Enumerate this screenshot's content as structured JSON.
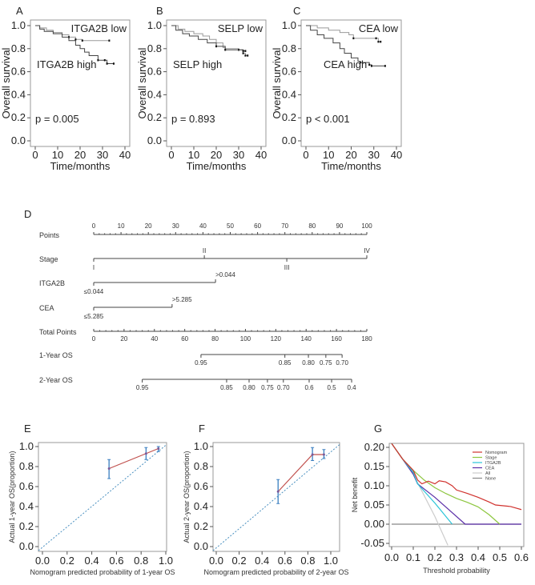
{
  "chart_data": [
    {
      "panel": "A",
      "type": "line",
      "subtype": "kaplan-meier",
      "xlabel": "Time/months",
      "ylabel": "Overall survival",
      "xlim": [
        0,
        40
      ],
      "ylim": [
        0,
        1
      ],
      "xticks": [
        "0",
        "10",
        "20",
        "30",
        "40"
      ],
      "yticks": [
        "0.0",
        "0.2",
        "0.4",
        "0.6",
        "0.8",
        "1.0"
      ],
      "annotation": "p = 0.005",
      "series": [
        {
          "name": "ITGA2B low",
          "color": "#999999",
          "points": [
            [
              0,
              1
            ],
            [
              2,
              0.98
            ],
            [
              5,
              0.96
            ],
            [
              8,
              0.94
            ],
            [
              12,
              0.92
            ],
            [
              15,
              0.9
            ],
            [
              18,
              0.88
            ],
            [
              21,
              0.87
            ],
            [
              33,
              0.87
            ]
          ]
        },
        {
          "name": "ITGA2B high",
          "color": "#444444",
          "points": [
            [
              0,
              1
            ],
            [
              2,
              0.97
            ],
            [
              4,
              0.95
            ],
            [
              8,
              0.93
            ],
            [
              12,
              0.9
            ],
            [
              15,
              0.87
            ],
            [
              18,
              0.83
            ],
            [
              20,
              0.8
            ],
            [
              22,
              0.77
            ],
            [
              24,
              0.74
            ],
            [
              27,
              0.74
            ],
            [
              28,
              0.7
            ],
            [
              31,
              0.7
            ],
            [
              32,
              0.67
            ],
            [
              35,
              0.67
            ]
          ]
        }
      ]
    },
    {
      "panel": "B",
      "type": "line",
      "subtype": "kaplan-meier",
      "xlabel": "Time/months",
      "ylabel": "Overall survival",
      "xlim": [
        0,
        40
      ],
      "ylim": [
        0,
        1
      ],
      "xticks": [
        "0",
        "10",
        "20",
        "30",
        "40"
      ],
      "yticks": [
        "0.0",
        "0.2",
        "0.4",
        "0.6",
        "0.8",
        "1.0"
      ],
      "annotation": "p = 0.893",
      "series": [
        {
          "name": "SELP low",
          "color": "#999999",
          "points": [
            [
              0,
              1
            ],
            [
              3,
              0.97
            ],
            [
              6,
              0.95
            ],
            [
              10,
              0.93
            ],
            [
              14,
              0.91
            ],
            [
              17,
              0.88
            ],
            [
              20,
              0.85
            ],
            [
              23,
              0.81
            ],
            [
              24,
              0.8
            ],
            [
              30,
              0.79
            ],
            [
              32,
              0.76
            ],
            [
              33,
              0.74
            ],
            [
              34,
              0.74
            ]
          ]
        },
        {
          "name": "SELP high",
          "color": "#444444",
          "points": [
            [
              0,
              1
            ],
            [
              2,
              0.96
            ],
            [
              5,
              0.93
            ],
            [
              8,
              0.91
            ],
            [
              12,
              0.88
            ],
            [
              16,
              0.85
            ],
            [
              20,
              0.82
            ],
            [
              24,
              0.79
            ],
            [
              32,
              0.78
            ],
            [
              33,
              0.78
            ]
          ]
        }
      ]
    },
    {
      "panel": "C",
      "type": "line",
      "subtype": "kaplan-meier",
      "xlabel": "Time/months",
      "ylabel": "Overall survival",
      "xlim": [
        0,
        40
      ],
      "ylim": [
        0,
        1
      ],
      "xticks": [
        "0",
        "10",
        "20",
        "30",
        "40"
      ],
      "yticks": [
        "0.0",
        "0.2",
        "0.4",
        "0.6",
        "0.8",
        "1.0"
      ],
      "annotation": "p < 0.001",
      "series": [
        {
          "name": "CEA low",
          "color": "#999999",
          "points": [
            [
              0,
              1
            ],
            [
              5,
              0.98
            ],
            [
              10,
              0.96
            ],
            [
              15,
              0.94
            ],
            [
              19,
              0.92
            ],
            [
              21,
              0.89
            ],
            [
              31,
              0.89
            ],
            [
              32,
              0.86
            ],
            [
              33,
              0.86
            ]
          ]
        },
        {
          "name": "CEA high",
          "color": "#444444",
          "points": [
            [
              0,
              1
            ],
            [
              2,
              0.96
            ],
            [
              5,
              0.92
            ],
            [
              8,
              0.89
            ],
            [
              12,
              0.85
            ],
            [
              15,
              0.8
            ],
            [
              17,
              0.76
            ],
            [
              20,
              0.72
            ],
            [
              23,
              0.69
            ],
            [
              24,
              0.68
            ],
            [
              28,
              0.66
            ],
            [
              29,
              0.65
            ],
            [
              35,
              0.65
            ]
          ]
        }
      ]
    },
    {
      "panel": "D",
      "type": "nomogram",
      "points_axis": {
        "label": "Points",
        "range": [
          0,
          100
        ],
        "ticks": [
          0,
          10,
          20,
          30,
          40,
          50,
          60,
          70,
          80,
          90,
          100
        ]
      },
      "variables": [
        {
          "label": "Stage",
          "levels": [
            {
              "text": "I",
              "points": 0,
              "pos": "below"
            },
            {
              "text": "II",
              "points": 40.5,
              "pos": "above"
            },
            {
              "text": "III",
              "points": 70.7,
              "pos": "below"
            },
            {
              "text": "IV",
              "points": 100,
              "pos": "above"
            }
          ]
        },
        {
          "label": "ITGA2B",
          "levels": [
            {
              "text": "≤0.044",
              "points": 0,
              "pos": "below"
            },
            {
              "text": ">0.044",
              "points": 44.6,
              "pos": "above"
            }
          ]
        },
        {
          "label": "CEA",
          "levels": [
            {
              "text": "≤5.285",
              "points": 0,
              "pos": "below"
            },
            {
              "text": ">5.285",
              "points": 28.7,
              "pos": "above"
            }
          ]
        }
      ],
      "total_axis": {
        "label": "Total Points",
        "range": [
          0,
          180
        ],
        "ticks": [
          0,
          20,
          40,
          60,
          80,
          100,
          120,
          140,
          160,
          180
        ]
      },
      "outcomes": [
        {
          "label": "1-Year OS",
          "ticks": [
            {
              "text": "0.95",
              "total": 70.7
            },
            {
              "text": "0.85",
              "total": 126
            },
            {
              "text": "0.80",
              "total": 141.5
            },
            {
              "text": "0.75",
              "total": 153
            },
            {
              "text": "0.70",
              "total": 163.7
            }
          ]
        },
        {
          "label": "2-Year OS",
          "ticks": [
            {
              "text": "0.95",
              "total": 32
            },
            {
              "text": "0.85",
              "total": 87.6
            },
            {
              "text": "0.80",
              "total": 102.4
            },
            {
              "text": "0.75",
              "total": 114.5
            },
            {
              "text": "0.70",
              "total": 125
            },
            {
              "text": "0.6",
              "total": 142
            },
            {
              "text": "0.5",
              "total": 156.8
            },
            {
              "text": "0.4",
              "total": 170
            }
          ]
        }
      ]
    },
    {
      "panel": "E",
      "type": "line",
      "subtype": "calibration",
      "xlabel": "Nomogram predicted probability of 1-year OS",
      "ylabel": "Actual 1-year OS(proportion)",
      "xlim": [
        0,
        1
      ],
      "ylim": [
        0,
        1
      ],
      "xticks": [
        "0.0",
        "0.2",
        "0.4",
        "0.6",
        "0.8",
        "1.0"
      ],
      "yticks": [
        "0.0",
        "0.2",
        "0.4",
        "0.6",
        "0.8",
        "1.0"
      ],
      "points": [
        {
          "x": 0.54,
          "y": 0.78,
          "lo": 0.68,
          "hi": 0.87
        },
        {
          "x": 0.84,
          "y": 0.93,
          "lo": 0.87,
          "hi": 0.99
        },
        {
          "x": 0.94,
          "y": 0.98,
          "lo": 0.95,
          "hi": 1.0
        }
      ],
      "line_color": "#c0504d",
      "error_color": "#3a7fc1",
      "ideal_color": "#4a90c0"
    },
    {
      "panel": "F",
      "type": "line",
      "subtype": "calibration",
      "xlabel": "Nomogram predicted probability of 2-year OS",
      "ylabel": "Actual 2-year OS(proportion)",
      "xlim": [
        0,
        1
      ],
      "ylim": [
        0,
        1
      ],
      "xticks": [
        "0.0",
        "0.2",
        "0.4",
        "0.6",
        "0.8",
        "1.0"
      ],
      "yticks": [
        "0.0",
        "0.2",
        "0.4",
        "0.6",
        "0.8",
        "1.0"
      ],
      "points": [
        {
          "x": 0.54,
          "y": 0.55,
          "lo": 0.43,
          "hi": 0.67
        },
        {
          "x": 0.84,
          "y": 0.92,
          "lo": 0.86,
          "hi": 0.99
        },
        {
          "x": 0.94,
          "y": 0.92,
          "lo": 0.88,
          "hi": 0.97
        }
      ],
      "line_color": "#c0504d",
      "error_color": "#3a7fc1",
      "ideal_color": "#4a90c0"
    },
    {
      "panel": "G",
      "type": "line",
      "subtype": "decision-curve",
      "xlabel": "Threshold probability",
      "ylabel": "Net benefit",
      "xlim": [
        0,
        0.6
      ],
      "ylim": [
        -0.05,
        0.2
      ],
      "xticks": [
        "0.0",
        "0.1",
        "0.2",
        "0.3",
        "0.4",
        "0.5",
        "0.6"
      ],
      "yticks": [
        "-0.05",
        "0.00",
        "0.05",
        "0.10",
        "0.15",
        "0.20"
      ],
      "legend": "top-right",
      "series": [
        {
          "name": "Nomogram",
          "color": "#d0312d",
          "points": [
            [
              0,
              0.21
            ],
            [
              0.05,
              0.17
            ],
            [
              0.1,
              0.14
            ],
            [
              0.12,
              0.115
            ],
            [
              0.14,
              0.105
            ],
            [
              0.17,
              0.112
            ],
            [
              0.2,
              0.105
            ],
            [
              0.22,
              0.113
            ],
            [
              0.25,
              0.11
            ],
            [
              0.28,
              0.1
            ],
            [
              0.3,
              0.089
            ],
            [
              0.35,
              0.08
            ],
            [
              0.4,
              0.07
            ],
            [
              0.45,
              0.058
            ],
            [
              0.48,
              0.05
            ],
            [
              0.55,
              0.046
            ],
            [
              0.6,
              0.038
            ]
          ]
        },
        {
          "name": "Stage",
          "color": "#8dc63f",
          "points": [
            [
              0,
              0.21
            ],
            [
              0.05,
              0.17
            ],
            [
              0.1,
              0.14
            ],
            [
              0.15,
              0.115
            ],
            [
              0.2,
              0.095
            ],
            [
              0.25,
              0.08
            ],
            [
              0.3,
              0.067
            ],
            [
              0.35,
              0.057
            ],
            [
              0.4,
              0.045
            ],
            [
              0.45,
              0.025
            ],
            [
              0.5,
              0
            ]
          ]
        },
        {
          "name": "ITGA2B",
          "color": "#29c4d8",
          "points": [
            [
              0,
              0.21
            ],
            [
              0.05,
              0.17
            ],
            [
              0.1,
              0.135
            ],
            [
              0.12,
              0.105
            ],
            [
              0.2,
              0.055
            ],
            [
              0.28,
              0
            ]
          ]
        },
        {
          "name": "CEA",
          "color": "#5b2fa8",
          "points": [
            [
              0,
              0.21
            ],
            [
              0.05,
              0.17
            ],
            [
              0.1,
              0.13
            ],
            [
              0.12,
              0.105
            ],
            [
              0.2,
              0.07
            ],
            [
              0.34,
              0
            ],
            [
              0.6,
              0
            ]
          ]
        },
        {
          "name": "All",
          "color": "#cccccc",
          "points": [
            [
              0,
              0.21
            ],
            [
              0.1,
              0.13
            ],
            [
              0.2,
              0.02
            ],
            [
              0.26,
              -0.055
            ]
          ]
        },
        {
          "name": "None",
          "color": "#888888",
          "points": [
            [
              0,
              0
            ],
            [
              0.6,
              0
            ]
          ]
        }
      ]
    }
  ]
}
